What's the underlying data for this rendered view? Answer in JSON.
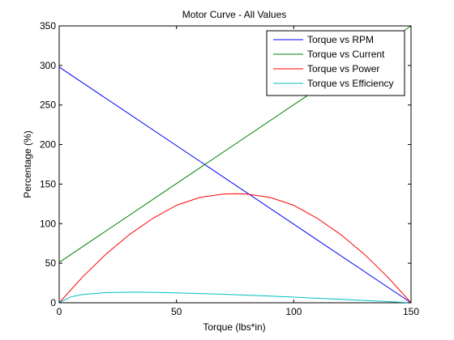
{
  "chart_data": {
    "type": "line",
    "title": "Motor Curve - All Values",
    "xlabel": "Torque (lbs*in)",
    "ylabel": "Percentage (%)",
    "xlim": [
      0,
      150
    ],
    "ylim": [
      0,
      350
    ],
    "xticks": [
      0,
      50,
      100,
      150
    ],
    "yticks": [
      0,
      50,
      100,
      150,
      200,
      250,
      300,
      350
    ],
    "grid": false,
    "legend_position": "top-right",
    "series": [
      {
        "name": "Torque vs RPM",
        "color": "#0000ff",
        "x": [
          0,
          150
        ],
        "y": [
          298,
          0
        ]
      },
      {
        "name": "Torque vs Current",
        "color": "#008000",
        "x": [
          0,
          150
        ],
        "y": [
          51,
          350
        ]
      },
      {
        "name": "Torque vs Power",
        "color": "#ff0000",
        "x": [
          0,
          10,
          20,
          30,
          40,
          50,
          60,
          70,
          75,
          80,
          90,
          100,
          110,
          120,
          130,
          140,
          150
        ],
        "y": [
          0,
          32.7,
          61.6,
          86.3,
          106.8,
          123.2,
          133.2,
          137.4,
          137.9,
          137.4,
          133.2,
          123.2,
          106.8,
          86.3,
          61.6,
          32.7,
          0
        ]
      },
      {
        "name": "Torque vs Efficiency",
        "color": "#00bfbf",
        "x": [
          0,
          5,
          10,
          20,
          30,
          40,
          50,
          60,
          70,
          80,
          90,
          100,
          110,
          120,
          130,
          140,
          150
        ],
        "y": [
          0,
          7.5,
          10.5,
          12.8,
          13.4,
          13.2,
          12.6,
          11.7,
          10.7,
          9.6,
          8.4,
          7.1,
          5.7,
          4.3,
          2.9,
          1.5,
          0
        ]
      }
    ]
  }
}
